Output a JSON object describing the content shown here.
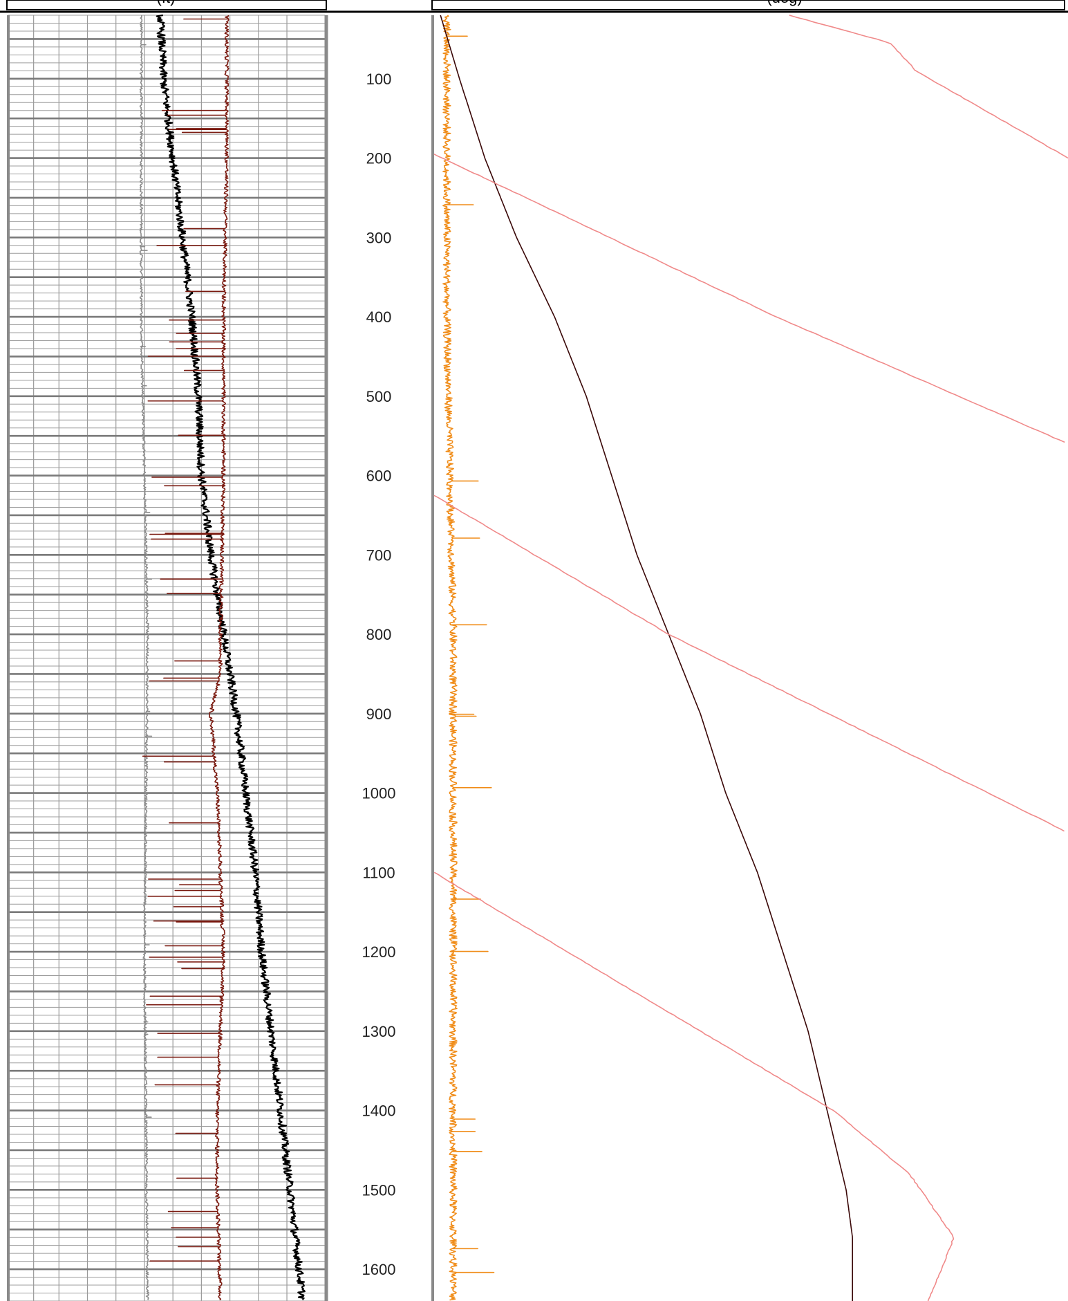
{
  "header": {
    "left_track_fragment": "(ft)",
    "right_track_fragment": "(deg)"
  },
  "chart_data": {
    "type": "line",
    "title": "",
    "ylabel": "",
    "y_direction": "down",
    "ylim": [
      20,
      1640
    ],
    "depth_ticks": [
      100,
      200,
      300,
      400,
      500,
      600,
      700,
      800,
      900,
      1000,
      1100,
      1200,
      1300,
      1400,
      1500,
      1600
    ],
    "tracks": [
      {
        "name": "",
        "grid": "linear",
        "curves": [
          {
            "name": "",
            "color": "#8c8c8c",
            "x_scale": [
              0,
              1
            ],
            "points": [
              [
                20,
                0.42
              ],
              [
                400,
                0.42
              ],
              [
                800,
                0.44
              ],
              [
                1200,
                0.43
              ],
              [
                1640,
                0.44
              ]
            ]
          },
          {
            "name": "",
            "color": "#000000",
            "x_scale": [
              0,
              1
            ],
            "points": [
              [
                20,
                0.48
              ],
              [
                100,
                0.49
              ],
              [
                200,
                0.52
              ],
              [
                300,
                0.55
              ],
              [
                400,
                0.58
              ],
              [
                500,
                0.6
              ],
              [
                600,
                0.61
              ],
              [
                700,
                0.64
              ],
              [
                800,
                0.68
              ],
              [
                900,
                0.72
              ],
              [
                1000,
                0.75
              ],
              [
                1100,
                0.78
              ],
              [
                1200,
                0.8
              ],
              [
                1300,
                0.83
              ],
              [
                1400,
                0.86
              ],
              [
                1500,
                0.89
              ],
              [
                1640,
                0.93
              ]
            ]
          },
          {
            "name": "",
            "color": "#7a1a10",
            "x_scale": [
              0,
              1
            ],
            "points": [
              [
                20,
                0.69
              ],
              [
                200,
                0.69
              ],
              [
                400,
                0.68
              ],
              [
                600,
                0.68
              ],
              [
                800,
                0.67
              ],
              [
                850,
                0.67
              ],
              [
                900,
                0.64
              ],
              [
                1000,
                0.66
              ],
              [
                1100,
                0.67
              ],
              [
                1200,
                0.68
              ],
              [
                1300,
                0.67
              ],
              [
                1400,
                0.66
              ],
              [
                1500,
                0.66
              ],
              [
                1640,
                0.67
              ]
            ]
          }
        ]
      },
      {
        "name": "",
        "grid": "none",
        "curves": [
          {
            "name": "",
            "color": "#f08c18",
            "x_scale": [
              0,
              1
            ],
            "points": [
              [
                20,
                0.02
              ],
              [
                400,
                0.02
              ],
              [
                800,
                0.03
              ],
              [
                1200,
                0.03
              ],
              [
                1640,
                0.03
              ]
            ]
          },
          {
            "name": "",
            "color": "#3a0808",
            "x_scale": [
              0,
              1
            ],
            "points": [
              [
                20,
                0.01
              ],
              [
                100,
                0.04
              ],
              [
                200,
                0.08
              ],
              [
                300,
                0.13
              ],
              [
                400,
                0.19
              ],
              [
                500,
                0.24
              ],
              [
                600,
                0.28
              ],
              [
                700,
                0.32
              ],
              [
                800,
                0.37
              ],
              [
                900,
                0.42
              ],
              [
                1000,
                0.46
              ],
              [
                1100,
                0.51
              ],
              [
                1200,
                0.55
              ],
              [
                1300,
                0.59
              ],
              [
                1400,
                0.62
              ],
              [
                1500,
                0.65
              ],
              [
                1560,
                0.66
              ],
              [
                1640,
                0.66
              ]
            ]
          },
          {
            "name": "",
            "color": "#f08a8a",
            "x_scale": [
              0,
              1
            ],
            "segments": [
              [
                [
                  20,
                  0.56
                ],
                [
                  55,
                  0.72
                ],
                [
                  90,
                  0.76
                ],
                [
                  200,
                  1.0
                ]
              ],
              [
                [
                  195,
                  0.0
                ],
                [
                  400,
                  0.54
                ],
                [
                  560,
                  1.0
                ]
              ],
              [
                [
                  625,
                  0.0
                ],
                [
                  800,
                  0.37
                ],
                [
                  1050,
                  1.0
                ]
              ],
              [
                [
                  1100,
                  0.0
                ],
                [
                  1400,
                  0.63
                ],
                [
                  1480,
                  0.75
                ],
                [
                  1560,
                  0.82
                ],
                [
                  1640,
                  0.78
                ]
              ]
            ]
          }
        ]
      }
    ]
  }
}
